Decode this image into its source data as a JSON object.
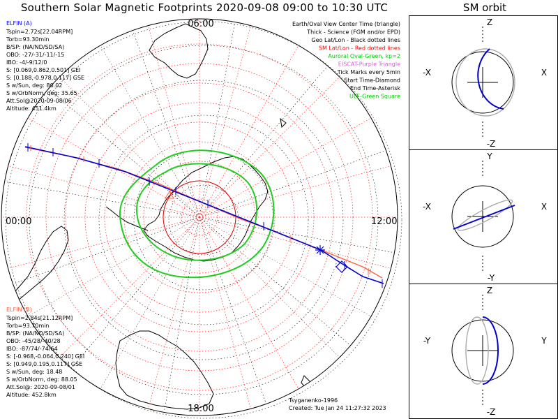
{
  "title": "Southern Solar Magnetic Footprints 2020-09-08 09:00 to 10:30 UTC",
  "orbit_title": "SM orbit",
  "mlt_labels": {
    "top": "06:00",
    "left": "00:00",
    "right": "12:00",
    "bottom": "18:00"
  },
  "elfin_a": {
    "name": "ELFIN (A)",
    "color": "#0000ff",
    "lines": [
      "Tspin=2.72s[22.04RPM]",
      "Torb=93.30min",
      "B/SP: (NA/ND/SD/SA)",
      "OBO: -27/-31/-11/-15",
      "IBO: -4/-9/12/0",
      "S: [0.069,0.862,0.501] GEI",
      "S: [0.188,-0.978,0.117] GSE",
      "S w/Sun, deg: 80.02",
      "S w/OrbNorm, deg: 35.65",
      "Att.Sol@2020-09-08/06",
      "Altitude: 451.4km"
    ]
  },
  "elfin_b": {
    "name": "ELFIN (B)",
    "color": "#ff6040",
    "lines": [
      "Tspin=2.84s[21.12RPM]",
      "Torb=93.70min",
      "B/SP: (NA/ND/SD/SA)",
      "OBO: -45/28/-40/28",
      "IBO: -87/74/-74/64",
      "S: [-0.968,-0.064,0.240] GEI",
      "S: [0.949,0.195,0.117] GSE",
      "S w/Sun, deg: 18.48",
      "S w/OrbNorm, deg: 88.05",
      "Att.Sol@: 2020-09-08/01",
      "Altitude: 452.8km"
    ]
  },
  "legend": [
    {
      "text": "Earth/Oval View Center Time (triangle)",
      "color": "#000000"
    },
    {
      "text": "Thick - Science (FGM and/or EPD)",
      "color": "#000000"
    },
    {
      "text": "Geo Lat/Lon - Black dotted lines",
      "color": "#000000"
    },
    {
      "text": "SM Lat/Lon - Red dotted lines",
      "color": "#ff0000"
    },
    {
      "text": "Auroral Oval-Green, kp=2",
      "color": "#00cc00"
    },
    {
      "text": "EISCAT-Purple Triangle",
      "color": "#cc66cc"
    },
    {
      "text": "Tick Marks every 5min",
      "color": "#000000"
    },
    {
      "text": "Start Time-Diamond",
      "color": "#000000"
    },
    {
      "text": "End Time-Asterisk",
      "color": "#000000"
    },
    {
      "text": "ULF-Green Square",
      "color": "#00cc00"
    }
  ],
  "model": "Tsyganenko-1996",
  "created": "Created: Tue Jan 24 11:27:32 2023",
  "orbit_panels": [
    {
      "top": "Z",
      "bottom": "-Z",
      "left": "-X",
      "right": "X"
    },
    {
      "top": "Y",
      "bottom": "-Y",
      "left": "-X",
      "right": "X"
    },
    {
      "top": "Z",
      "bottom": "-Z",
      "left": "-Y",
      "right": "Y"
    }
  ],
  "colors": {
    "auroral_oval": "#22cc22",
    "sm_grid": "#ff3030",
    "geo_grid": "#000000",
    "track_a": "#0000cc",
    "track_b": "#ff6040"
  }
}
